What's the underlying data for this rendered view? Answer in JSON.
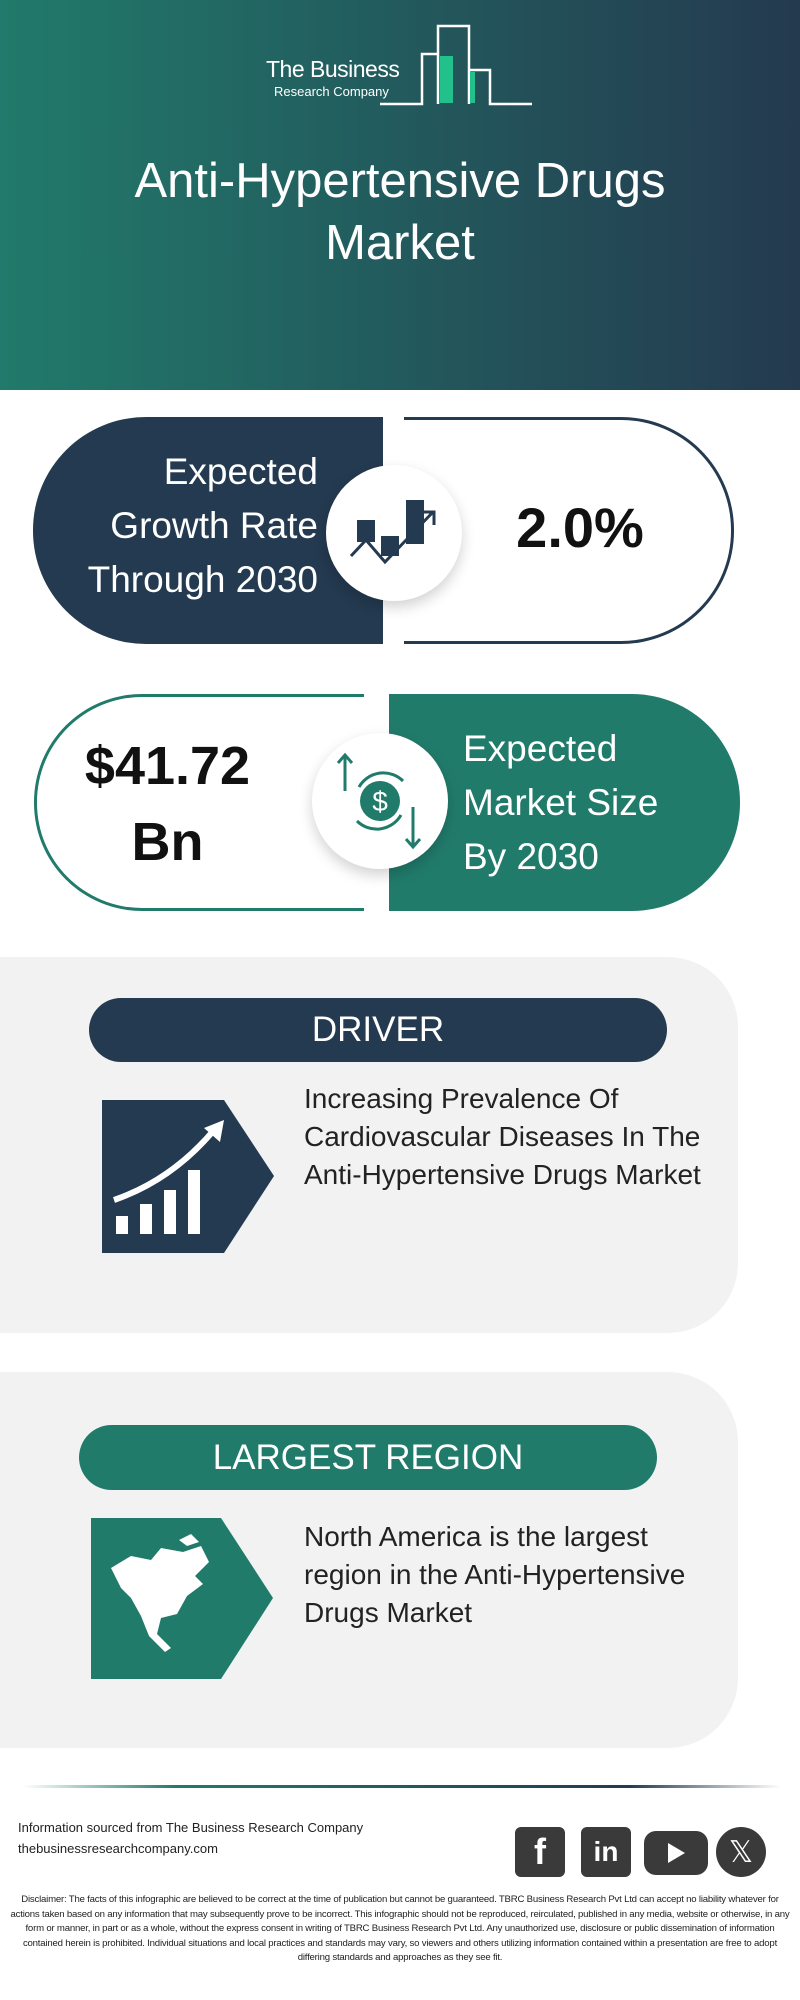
{
  "header": {
    "logo_line1": "The Business",
    "logo_line2": "Research Company",
    "title": "Anti-Hypertensive Drugs Market"
  },
  "growth": {
    "label_lines": [
      "Expected",
      "Growth Rate",
      "Through 2030"
    ],
    "value": "2.0%",
    "icon": "chart-growth-icon"
  },
  "market_size": {
    "value_lines": [
      "$41.72",
      "Bn"
    ],
    "label_lines": [
      "Expected",
      "Market Size",
      "By 2030"
    ],
    "icon": "dollar-exchange-icon"
  },
  "driver": {
    "heading": "DRIVER",
    "text": "Increasing Prevalence Of Cardiovascular Diseases In The Anti-Hypertensive Drugs Market",
    "icon": "rising-bars-icon"
  },
  "region": {
    "heading": "LARGEST REGION",
    "text": "North America is the largest region in the Anti-Hypertensive Drugs Market",
    "icon": "north-america-map-icon"
  },
  "footer": {
    "source": "Information sourced from The Business Research Company",
    "website": "thebusinessresearchcompany.com",
    "social": [
      "facebook",
      "linkedin",
      "youtube",
      "x"
    ],
    "disclaimer": "Disclaimer: The facts of this infographic are believed to be correct at the time of publication but cannot be guaranteed. TBRC Business Research Pvt Ltd can accept no liability whatever for actions taken based on any information that may subsequently prove to be incorrect. This infographic should not be reproduced, reirculated, published in any media, website or otherwise, in any form or manner, in part or as a whole, without the express consent in writing of TBRC Business Research Pvt Ltd. Any unauthorized use, disclosure or public dissemination of information contained herein is prohibited. Individual situations and local practices and standards may vary, so viewers and others utilizing information contained within a presentation are free to adopt differing standards and approaches as they see fit."
  },
  "colors": {
    "navy": "#243a50",
    "teal": "#217b6b",
    "card": "#f2f2f2"
  }
}
